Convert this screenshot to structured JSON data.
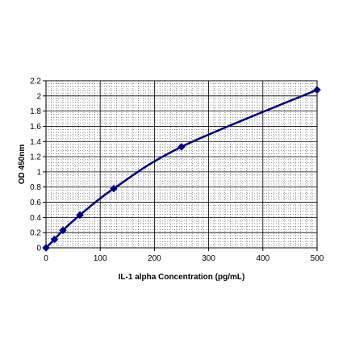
{
  "chart_data": {
    "type": "line",
    "title": "",
    "xlabel": "IL-1 alpha Concentration (pg/mL)",
    "ylabel": "OD 450nm",
    "xlim": [
      0,
      500
    ],
    "ylim": [
      0,
      2.2
    ],
    "x_ticks": [
      0,
      100,
      200,
      300,
      400,
      500
    ],
    "y_ticks": [
      0,
      0.2,
      0.4,
      0.6,
      0.8,
      1,
      1.2,
      1.4,
      1.6,
      1.8,
      2,
      2.2
    ],
    "x_tick_labels": [
      "0",
      "100",
      "200",
      "300",
      "400",
      "500"
    ],
    "y_tick_labels": [
      "0",
      "0.2",
      "0.4",
      "0.6",
      "0.8",
      "1",
      "1.2",
      "1.4",
      "1.6",
      "1.8",
      "2",
      "2.2"
    ],
    "grid": true,
    "legend": "none",
    "series": [
      {
        "marker": "diamond",
        "color": "#000080",
        "x": [
          0,
          15.6,
          31.2,
          62.5,
          125,
          250,
          500
        ],
        "y": [
          0,
          0.11,
          0.23,
          0.43,
          0.78,
          1.33,
          2.08
        ]
      }
    ]
  }
}
